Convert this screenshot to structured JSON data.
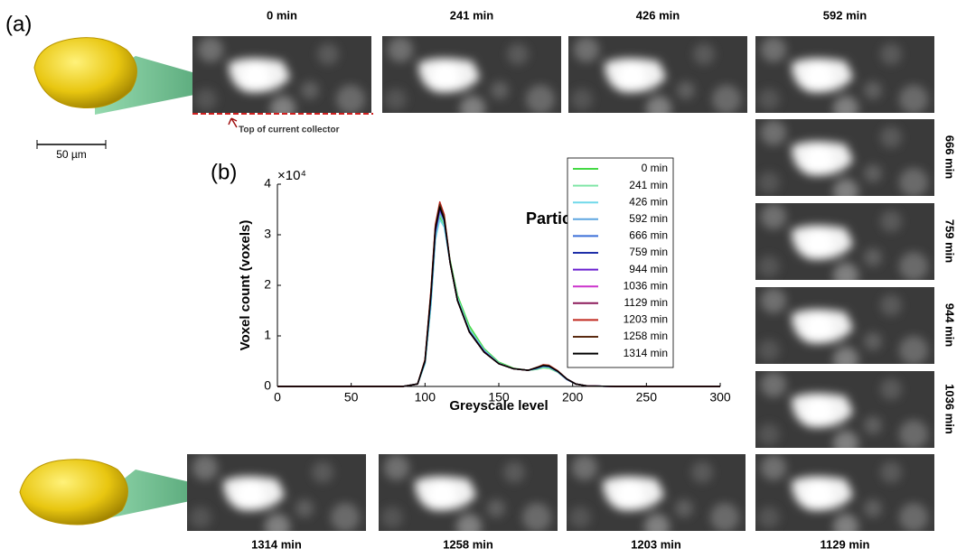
{
  "panel_a_label": "(a)",
  "panel_b_label": "(b)",
  "scale_bar_label": "50 µm",
  "collector_label": "Top of current collector",
  "image_labels": [
    "0 min",
    "241 min",
    "426 min",
    "592 min",
    "666 min",
    "759 min",
    "944 min",
    "1036 min",
    "1129 min",
    "1203 min",
    "1258 min",
    "1314 min"
  ],
  "chart_data": {
    "type": "line",
    "annotation": "Particle B",
    "xlabel": "Greyscale level",
    "ylabel": "Voxel count (voxels)",
    "y_scale_label": "×10⁴",
    "xlim": [
      0,
      300
    ],
    "xticks": [
      0,
      50,
      100,
      150,
      200,
      250,
      300
    ],
    "ylim": [
      0,
      4
    ],
    "yticks": [
      0,
      1,
      2,
      3,
      4
    ],
    "legend": "upper right",
    "x": [
      0,
      85,
      95,
      100,
      104,
      107,
      110,
      113,
      117,
      122,
      130,
      140,
      150,
      160,
      170,
      176,
      180,
      184,
      190,
      196,
      202,
      210,
      230,
      300
    ],
    "series": [
      {
        "name": "0 min",
        "color": "#44d944",
        "values": [
          0,
          0,
          0.05,
          0.45,
          1.6,
          2.9,
          3.35,
          3.2,
          2.5,
          1.8,
          1.2,
          0.75,
          0.48,
          0.36,
          0.32,
          0.34,
          0.37,
          0.36,
          0.28,
          0.14,
          0.05,
          0.01,
          0,
          0
        ]
      },
      {
        "name": "241 min",
        "color": "#80e6a6",
        "values": [
          0,
          0,
          0.05,
          0.45,
          1.65,
          2.95,
          3.4,
          3.2,
          2.45,
          1.75,
          1.15,
          0.72,
          0.46,
          0.35,
          0.32,
          0.35,
          0.38,
          0.37,
          0.28,
          0.14,
          0.05,
          0.01,
          0,
          0
        ]
      },
      {
        "name": "426 min",
        "color": "#70d8ea",
        "values": [
          0,
          0,
          0.05,
          0.45,
          1.6,
          2.9,
          3.3,
          3.15,
          2.45,
          1.75,
          1.12,
          0.72,
          0.46,
          0.35,
          0.32,
          0.35,
          0.39,
          0.38,
          0.29,
          0.14,
          0.05,
          0.01,
          0,
          0
        ]
      },
      {
        "name": "592 min",
        "color": "#5ea6e0",
        "values": [
          0,
          0,
          0.05,
          0.48,
          1.7,
          3.0,
          3.45,
          3.25,
          2.45,
          1.7,
          1.1,
          0.7,
          0.45,
          0.35,
          0.32,
          0.36,
          0.4,
          0.39,
          0.29,
          0.14,
          0.05,
          0.01,
          0,
          0
        ]
      },
      {
        "name": "666 min",
        "color": "#3a6ed8",
        "values": [
          0,
          0,
          0.05,
          0.5,
          1.75,
          3.05,
          3.5,
          3.3,
          2.45,
          1.7,
          1.1,
          0.7,
          0.45,
          0.35,
          0.32,
          0.36,
          0.4,
          0.39,
          0.29,
          0.14,
          0.05,
          0.01,
          0,
          0
        ]
      },
      {
        "name": "759 min",
        "color": "#1e2ea8",
        "values": [
          0,
          0,
          0.05,
          0.5,
          1.8,
          3.1,
          3.55,
          3.3,
          2.45,
          1.7,
          1.08,
          0.69,
          0.45,
          0.35,
          0.32,
          0.37,
          0.41,
          0.4,
          0.3,
          0.15,
          0.05,
          0.01,
          0,
          0
        ]
      },
      {
        "name": "944 min",
        "color": "#6a20d0",
        "values": [
          0,
          0,
          0.05,
          0.5,
          1.8,
          3.05,
          3.5,
          3.3,
          2.45,
          1.7,
          1.08,
          0.69,
          0.45,
          0.35,
          0.32,
          0.37,
          0.41,
          0.4,
          0.3,
          0.15,
          0.05,
          0.01,
          0,
          0
        ]
      },
      {
        "name": "1036 min",
        "color": "#cc33cc",
        "values": [
          0,
          0,
          0.05,
          0.52,
          1.85,
          3.15,
          3.6,
          3.35,
          2.45,
          1.7,
          1.08,
          0.68,
          0.45,
          0.35,
          0.32,
          0.37,
          0.42,
          0.41,
          0.3,
          0.15,
          0.05,
          0.01,
          0,
          0
        ]
      },
      {
        "name": "1129 min",
        "color": "#8b1a5a",
        "values": [
          0,
          0,
          0.05,
          0.52,
          1.85,
          3.15,
          3.6,
          3.35,
          2.45,
          1.7,
          1.08,
          0.68,
          0.45,
          0.35,
          0.32,
          0.38,
          0.42,
          0.41,
          0.3,
          0.15,
          0.05,
          0.01,
          0,
          0
        ]
      },
      {
        "name": "1203 min",
        "color": "#c0281e",
        "values": [
          0,
          0,
          0.05,
          0.53,
          1.9,
          3.2,
          3.65,
          3.4,
          2.45,
          1.7,
          1.08,
          0.68,
          0.45,
          0.35,
          0.32,
          0.38,
          0.43,
          0.42,
          0.31,
          0.15,
          0.05,
          0.01,
          0,
          0
        ]
      },
      {
        "name": "1258 min",
        "color": "#5a2a10",
        "values": [
          0,
          0,
          0.05,
          0.52,
          1.85,
          3.15,
          3.6,
          3.35,
          2.45,
          1.7,
          1.08,
          0.68,
          0.45,
          0.35,
          0.32,
          0.38,
          0.42,
          0.41,
          0.3,
          0.15,
          0.05,
          0.01,
          0,
          0
        ]
      },
      {
        "name": "1314 min",
        "color": "#000000",
        "values": [
          0,
          0,
          0.05,
          0.5,
          1.8,
          3.1,
          3.55,
          3.3,
          2.45,
          1.7,
          1.08,
          0.68,
          0.45,
          0.35,
          0.32,
          0.37,
          0.41,
          0.4,
          0.3,
          0.15,
          0.05,
          0.01,
          0,
          0
        ]
      }
    ]
  }
}
